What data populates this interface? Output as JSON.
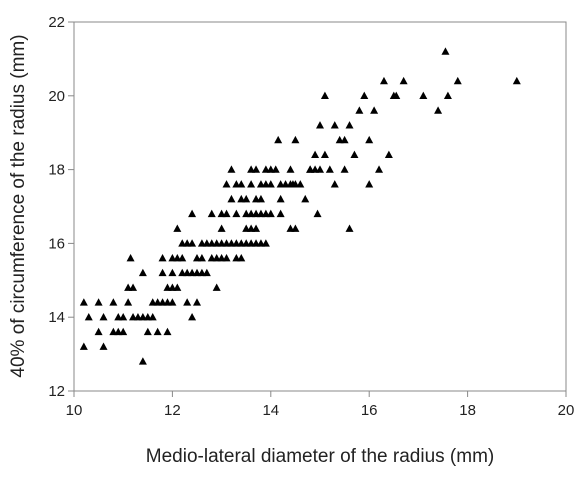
{
  "chart_data": {
    "type": "scatter",
    "xlabel": "Medio-lateral diameter of the radius (mm)",
    "ylabel": "40% of circumference of the radius (mm)",
    "xlim": [
      10,
      20
    ],
    "ylim": [
      12,
      22
    ],
    "x_ticks": [
      "10",
      "12",
      "14",
      "16",
      "18",
      "20"
    ],
    "y_ticks": [
      "12",
      "14",
      "16",
      "18",
      "20",
      "22"
    ],
    "grid": false,
    "legend": "none",
    "marker": "triangle",
    "marker_color": "#000000",
    "points": [
      [
        10.2,
        14.4
      ],
      [
        10.2,
        13.2
      ],
      [
        10.3,
        14.0
      ],
      [
        10.5,
        14.4
      ],
      [
        10.5,
        13.6
      ],
      [
        10.6,
        14.0
      ],
      [
        10.6,
        13.2
      ],
      [
        10.8,
        14.4
      ],
      [
        10.8,
        13.6
      ],
      [
        10.9,
        14.0
      ],
      [
        10.9,
        13.6
      ],
      [
        11.0,
        13.6
      ],
      [
        11.0,
        14.0
      ],
      [
        11.1,
        14.4
      ],
      [
        11.1,
        14.8
      ],
      [
        11.15,
        15.6
      ],
      [
        11.2,
        14.8
      ],
      [
        11.2,
        14.0
      ],
      [
        11.3,
        14.0
      ],
      [
        11.4,
        14.0
      ],
      [
        11.4,
        15.2
      ],
      [
        11.4,
        12.8
      ],
      [
        11.5,
        14.0
      ],
      [
        11.5,
        13.6
      ],
      [
        11.6,
        14.0
      ],
      [
        11.6,
        14.4
      ],
      [
        11.7,
        14.4
      ],
      [
        11.7,
        13.6
      ],
      [
        11.8,
        14.4
      ],
      [
        11.8,
        15.2
      ],
      [
        11.8,
        15.6
      ],
      [
        11.9,
        14.8
      ],
      [
        11.9,
        14.4
      ],
      [
        11.9,
        13.6
      ],
      [
        12.0,
        15.2
      ],
      [
        12.0,
        14.4
      ],
      [
        12.0,
        15.6
      ],
      [
        12.0,
        14.8
      ],
      [
        12.1,
        15.6
      ],
      [
        12.1,
        16.4
      ],
      [
        12.1,
        14.8
      ],
      [
        12.2,
        15.2
      ],
      [
        12.2,
        16.0
      ],
      [
        12.2,
        15.6
      ],
      [
        12.3,
        16.0
      ],
      [
        12.3,
        14.4
      ],
      [
        12.3,
        15.2
      ],
      [
        12.4,
        15.2
      ],
      [
        12.4,
        14.0
      ],
      [
        12.4,
        16.0
      ],
      [
        12.4,
        16.8
      ],
      [
        12.5,
        15.6
      ],
      [
        12.5,
        14.4
      ],
      [
        12.5,
        15.2
      ],
      [
        12.6,
        16.0
      ],
      [
        12.6,
        15.6
      ],
      [
        12.6,
        15.2
      ],
      [
        12.7,
        16.0
      ],
      [
        12.7,
        15.2
      ],
      [
        12.8,
        15.6
      ],
      [
        12.8,
        16.8
      ],
      [
        12.8,
        16.0
      ],
      [
        12.9,
        15.6
      ],
      [
        12.9,
        14.8
      ],
      [
        12.9,
        16.0
      ],
      [
        13.0,
        15.6
      ],
      [
        13.0,
        16.4
      ],
      [
        13.0,
        16.0
      ],
      [
        13.0,
        16.8
      ],
      [
        13.1,
        17.6
      ],
      [
        13.1,
        16.0
      ],
      [
        13.1,
        15.6
      ],
      [
        13.1,
        16.8
      ],
      [
        13.2,
        17.2
      ],
      [
        13.2,
        16.0
      ],
      [
        13.2,
        18.0
      ],
      [
        13.3,
        16.0
      ],
      [
        13.3,
        17.6
      ],
      [
        13.3,
        15.6
      ],
      [
        13.3,
        16.8
      ],
      [
        13.4,
        17.6
      ],
      [
        13.4,
        16.0
      ],
      [
        13.4,
        15.6
      ],
      [
        13.4,
        17.2
      ],
      [
        13.5,
        16.4
      ],
      [
        13.5,
        16.0
      ],
      [
        13.5,
        16.8
      ],
      [
        13.5,
        17.2
      ],
      [
        13.6,
        16.0
      ],
      [
        13.6,
        16.4
      ],
      [
        13.6,
        18.0
      ],
      [
        13.6,
        17.6
      ],
      [
        13.6,
        16.8
      ],
      [
        13.7,
        17.2
      ],
      [
        13.7,
        16.0
      ],
      [
        13.7,
        18.0
      ],
      [
        13.7,
        16.4
      ],
      [
        13.7,
        16.8
      ],
      [
        13.8,
        17.6
      ],
      [
        13.8,
        16.0
      ],
      [
        13.8,
        16.8
      ],
      [
        13.8,
        17.2
      ],
      [
        13.9,
        16.8
      ],
      [
        13.9,
        17.6
      ],
      [
        13.9,
        18.0
      ],
      [
        13.9,
        16.0
      ],
      [
        14.0,
        17.6
      ],
      [
        14.0,
        18.0
      ],
      [
        14.0,
        16.8
      ],
      [
        14.1,
        18.0
      ],
      [
        14.15,
        18.8
      ],
      [
        14.2,
        17.6
      ],
      [
        14.2,
        17.2
      ],
      [
        14.2,
        16.8
      ],
      [
        14.3,
        17.6
      ],
      [
        14.4,
        16.4
      ],
      [
        14.4,
        17.6
      ],
      [
        14.4,
        18.0
      ],
      [
        14.45,
        17.6
      ],
      [
        14.5,
        18.8
      ],
      [
        14.5,
        16.4
      ],
      [
        14.5,
        17.6
      ],
      [
        14.6,
        17.6
      ],
      [
        14.7,
        17.2
      ],
      [
        14.8,
        18.0
      ],
      [
        14.8,
        18.0
      ],
      [
        14.9,
        18.0
      ],
      [
        14.9,
        18.4
      ],
      [
        14.95,
        16.8
      ],
      [
        15.0,
        19.2
      ],
      [
        15.0,
        18.0
      ],
      [
        15.1,
        20.0
      ],
      [
        15.1,
        18.4
      ],
      [
        15.2,
        18.0
      ],
      [
        15.3,
        19.2
      ],
      [
        15.3,
        17.6
      ],
      [
        15.4,
        18.8
      ],
      [
        15.5,
        18.0
      ],
      [
        15.5,
        18.8
      ],
      [
        15.6,
        19.2
      ],
      [
        15.6,
        16.4
      ],
      [
        15.7,
        18.4
      ],
      [
        15.8,
        19.6
      ],
      [
        15.9,
        20.0
      ],
      [
        16.0,
        17.6
      ],
      [
        16.0,
        18.8
      ],
      [
        16.1,
        19.6
      ],
      [
        16.2,
        18.0
      ],
      [
        16.3,
        20.4
      ],
      [
        16.4,
        18.4
      ],
      [
        16.5,
        20.0
      ],
      [
        16.55,
        20.0
      ],
      [
        16.7,
        20.4
      ],
      [
        17.1,
        20.0
      ],
      [
        17.4,
        19.6
      ],
      [
        17.55,
        21.2
      ],
      [
        17.6,
        20.0
      ],
      [
        17.8,
        20.4
      ],
      [
        19.0,
        20.4
      ]
    ]
  }
}
